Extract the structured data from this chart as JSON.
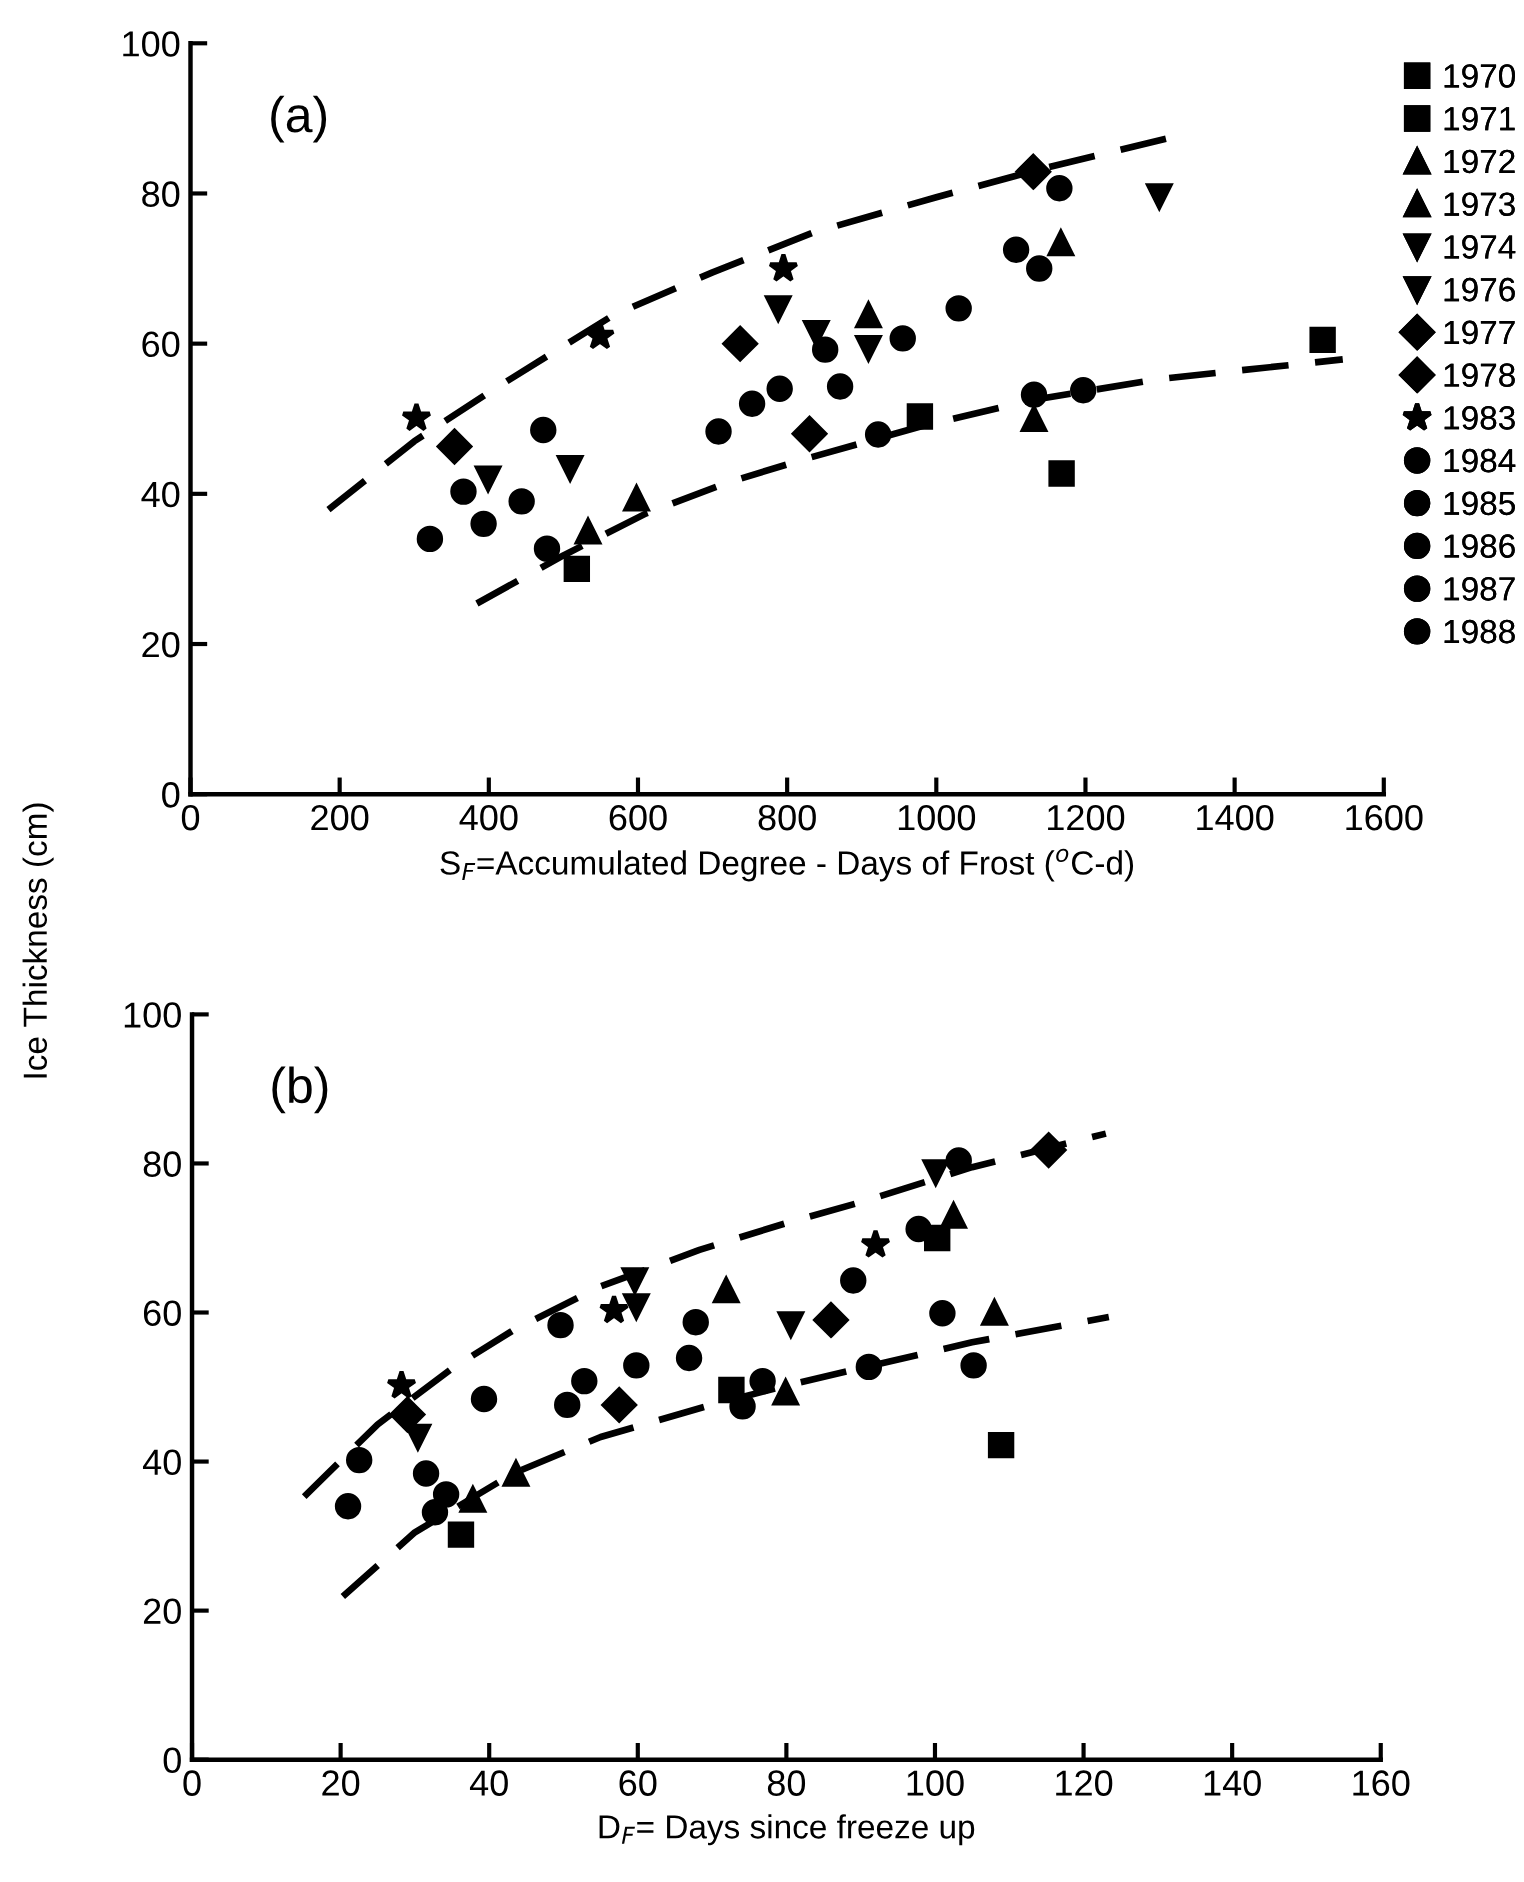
{
  "chart_data": [
    {
      "type": "scatter",
      "annotations": [
        "(a)"
      ],
      "xlabel": "S$_{F}$=Accumulated Degree - Days of Frost ($^{o}$C-d)",
      "ylabel": "Ice Thickness (cm)",
      "xlim": [
        0,
        1600
      ],
      "xticks": [
        0,
        200,
        400,
        600,
        800,
        1000,
        1200,
        1400,
        1600
      ],
      "ylim": [
        0,
        100
      ],
      "yticks": [
        0,
        20,
        40,
        60,
        80,
        100
      ],
      "legend": "right",
      "grid": false,
      "series": [
        {
          "name": "1970",
          "marker": "square",
          "color": "#000000",
          "x": [
            1518
          ],
          "values": [
            60.5
          ]
        },
        {
          "name": "1971",
          "marker": "square",
          "color": "#000000",
          "x": [
            518,
            978,
            1168
          ],
          "values": [
            30,
            50.3,
            42.7
          ]
        },
        {
          "name": "1972",
          "marker": "triangle",
          "color": "#000000",
          "x": [
            533,
            1131
          ],
          "values": [
            35,
            50
          ]
        },
        {
          "name": "1973",
          "marker": "triangle",
          "color": "#000000",
          "x": [
            598,
            909,
            1167
          ],
          "values": [
            39.4,
            63.8,
            73.4
          ]
        },
        {
          "name": "1974",
          "marker": "triangle_down",
          "color": "#000000",
          "x": [
            509,
            788,
            839,
            909
          ],
          "values": [
            43.4,
            64.7,
            61.4,
            59.4
          ]
        },
        {
          "name": "1976",
          "marker": "triangle_down",
          "color": "#000000",
          "x": [
            399,
            1299
          ],
          "values": [
            42,
            79.6
          ]
        },
        {
          "name": "1977",
          "marker": "diamond",
          "color": "#000000",
          "x": [
            830
          ],
          "values": [
            48
          ]
        },
        {
          "name": "1978",
          "marker": "diamond",
          "color": "#000000",
          "x": [
            354,
            737,
            1130
          ],
          "values": [
            46.3,
            60,
            82.9
          ]
        },
        {
          "name": "1983",
          "marker": "star",
          "color": "#000000",
          "x": [
            303,
            549,
            795
          ],
          "values": [
            50.1,
            61,
            70
          ]
        },
        {
          "name": "1984",
          "marker": "circle",
          "color": "#000000",
          "x": [
            366,
            851,
            1197
          ],
          "values": [
            40.3,
            59.2,
            53.8
          ]
        },
        {
          "name": "1985",
          "marker": "circle",
          "color": "#000000",
          "x": [
            321,
            444,
            790,
            871,
            922,
            1138
          ],
          "values": [
            34,
            39,
            54,
            54.3,
            47.9,
            70
          ]
        },
        {
          "name": "1986",
          "marker": "circle",
          "color": "#000000",
          "x": [
            393,
            708,
            753,
            1030,
            1107,
            1131
          ],
          "values": [
            36,
            48.3,
            52,
            64.7,
            72.5,
            53.2
          ]
        },
        {
          "name": "1987",
          "marker": "circle",
          "color": "#000000",
          "x": [
            473,
            1165
          ],
          "values": [
            48.5,
            80.7
          ]
        },
        {
          "name": "1988",
          "marker": "circle",
          "color": "#000000",
          "x": [
            478,
            955
          ],
          "values": [
            32.7,
            60.7
          ]
        },
        {
          "type": "line",
          "marker": "none",
          "line_style": "dashed",
          "color": "#000000",
          "x": [
            185,
            300,
            400,
            567,
            700,
            835,
            1000,
            1150,
            1313
          ],
          "values": [
            37.9,
            47,
            53.5,
            63.8,
            69.5,
            74.8,
            79.5,
            83.5,
            87.4
          ]
        },
        {
          "type": "line",
          "marker": "none",
          "line_style": "dashed",
          "color": "#000000",
          "x": [
            384,
            500,
            611,
            720,
            826,
            980,
            1129,
            1300,
            1545
          ],
          "values": [
            25.4,
            31.8,
            37.4,
            41.5,
            44.7,
            49,
            52.5,
            55.3,
            57.9
          ]
        }
      ]
    },
    {
      "type": "scatter",
      "annotations": [
        "(b)"
      ],
      "xlabel": "D$_{F}$= Days since freeze up",
      "xlim": [
        0,
        160
      ],
      "xticks": [
        0,
        20,
        40,
        60,
        80,
        100,
        120,
        140,
        160
      ],
      "ylim": [
        0,
        100
      ],
      "yticks": [
        0,
        20,
        40,
        60,
        80,
        100
      ],
      "grid": false,
      "series": [
        {
          "marker": "square",
          "color": "#000000",
          "x": [
            36.2,
            72.6,
            100.3,
            108.9
          ],
          "values": [
            30.2,
            49.6,
            70,
            42.2
          ]
        },
        {
          "marker": "triangle",
          "color": "#000000",
          "x": [
            37.8,
            79.9,
            108
          ],
          "values": [
            34.9,
            49.3,
            60
          ]
        },
        {
          "marker": "triangle",
          "color": "#000000",
          "x": [
            43.6,
            71.9,
            102.5
          ],
          "values": [
            38.4,
            63,
            73
          ]
        },
        {
          "marker": "triangle_down",
          "color": "#000000",
          "x": [
            30.4,
            59.6,
            80.6
          ],
          "values": [
            43.3,
            64.3,
            58.4
          ]
        },
        {
          "marker": "triangle_down",
          "color": "#000000",
          "x": [
            59.8,
            100.1
          ],
          "values": [
            60.8,
            78.8
          ]
        },
        {
          "marker": "diamond",
          "color": "#000000",
          "x": [
            57.5
          ],
          "values": [
            47.6
          ]
        },
        {
          "marker": "diamond",
          "color": "#000000",
          "x": [
            29,
            86,
            115.3
          ],
          "values": [
            46.3,
            59,
            81.8
          ]
        },
        {
          "marker": "star",
          "color": "#000000",
          "x": [
            28.2,
            56.8,
            92
          ],
          "values": [
            50.2,
            60.3,
            69.1
          ]
        },
        {
          "marker": "circle",
          "color": "#000000",
          "x": [
            22.5,
            34.2,
            39.3,
            49.6,
            76.8,
            91.1,
            103.2,
            105.2
          ],
          "values": [
            40.2,
            35.6,
            48.4,
            58.3,
            50.8,
            52.7,
            80.4,
            52.9
          ]
        },
        {
          "marker": "circle",
          "color": "#000000",
          "x": [
            21,
            31.5,
            52.8,
            67.8,
            74.1,
            89
          ],
          "values": [
            34,
            38.4,
            50.8,
            58.7,
            47.4,
            64.3
          ]
        },
        {
          "marker": "circle",
          "color": "#000000",
          "x": [
            50.5,
            59.8,
            66.9,
            97.8,
            101
          ],
          "values": [
            47.6,
            52.9,
            53.9,
            71.2,
            59.9
          ]
        },
        {
          "marker": "circle",
          "color": "#000000",
          "x": [
            32.7
          ],
          "values": [
            33.2
          ]
        },
        {
          "type": "line",
          "marker": "none",
          "line_style": "dashed",
          "color": "#000000",
          "x": [
            15.1,
            25,
            35,
            43.2,
            55,
            68.3,
            80,
            90.7,
            105,
            123
          ],
          "values": [
            35.3,
            45,
            52.5,
            57.6,
            63.5,
            68.4,
            72,
            75,
            79.5,
            84
          ]
        },
        {
          "type": "line",
          "marker": "none",
          "line_style": "dashed",
          "color": "#000000",
          "x": [
            20.3,
            30,
            43.2,
            55,
            69.2,
            80,
            90.7,
            105,
            123.4
          ],
          "values": [
            21.9,
            30.5,
            38.4,
            43.3,
            47.4,
            50.2,
            52.7,
            56,
            59.4
          ]
        }
      ]
    }
  ]
}
